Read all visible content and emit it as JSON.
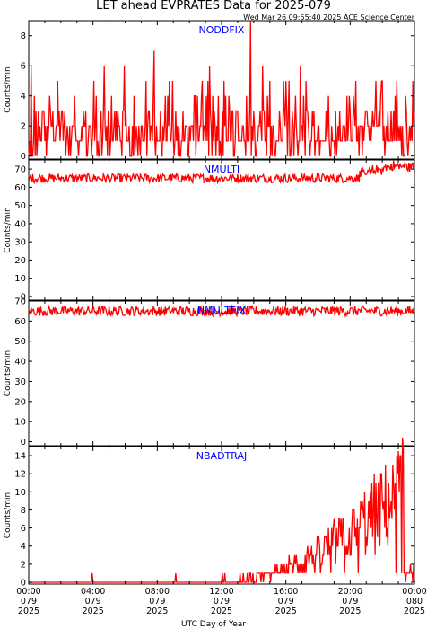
{
  "title": "LET ahead EVPRATES Data for 2025-079",
  "timestamp": "Wed Mar 26 09:55:40 2025 ACE Science Center",
  "xlabel": "UTC Day of Year",
  "colors": {
    "trace": "#ff0000",
    "panel_label": "#0000ff",
    "axes": "#000000"
  },
  "chart_data": [
    {
      "type": "line",
      "name": "NODDFIX",
      "ylabel": "Counts/min",
      "ylim": [
        -0.2,
        9
      ],
      "yticks": [
        0,
        2,
        4,
        6,
        8
      ],
      "trend": "noise_low",
      "spikes": [
        [
          7.8,
          7
        ],
        [
          13.8,
          9
        ]
      ]
    },
    {
      "type": "line",
      "name": "NMULTI",
      "ylabel": "Counts/min",
      "ylim": [
        -2,
        75
      ],
      "yticks": [
        0,
        10,
        20,
        30,
        40,
        50,
        60,
        70
      ],
      "trend": "flat_high",
      "base": 65,
      "late_rise": true
    },
    {
      "type": "line",
      "name": "NMULTFIX",
      "ylabel": "Counts/min",
      "ylim": [
        -2,
        70
      ],
      "yticks": [
        0,
        10,
        20,
        30,
        40,
        50,
        60,
        70
      ],
      "trend": "flat_high",
      "base": 65,
      "late_rise": false
    },
    {
      "type": "line",
      "name": "NBADTRAJ",
      "ylabel": "Counts/min",
      "ylim": [
        -0.2,
        15
      ],
      "yticks": [
        0,
        2,
        4,
        6,
        8,
        10,
        12,
        14
      ],
      "trend": "rising",
      "peak": 14.5
    }
  ],
  "x_axis": {
    "xlim": [
      0,
      24
    ],
    "ticks": [
      {
        "x": 0,
        "time": "00:00",
        "day": "079",
        "year": "2025"
      },
      {
        "x": 4,
        "time": "04:00",
        "day": "079",
        "year": "2025"
      },
      {
        "x": 8,
        "time": "08:00",
        "day": "079",
        "year": "2025"
      },
      {
        "x": 12,
        "time": "12:00",
        "day": "079",
        "year": "2025"
      },
      {
        "x": 16,
        "time": "16:00",
        "day": "079",
        "year": "2025"
      },
      {
        "x": 20,
        "time": "20:00",
        "day": "079",
        "year": "2025"
      },
      {
        "x": 24,
        "time": "00:00",
        "day": "080",
        "year": "2025"
      }
    ]
  }
}
